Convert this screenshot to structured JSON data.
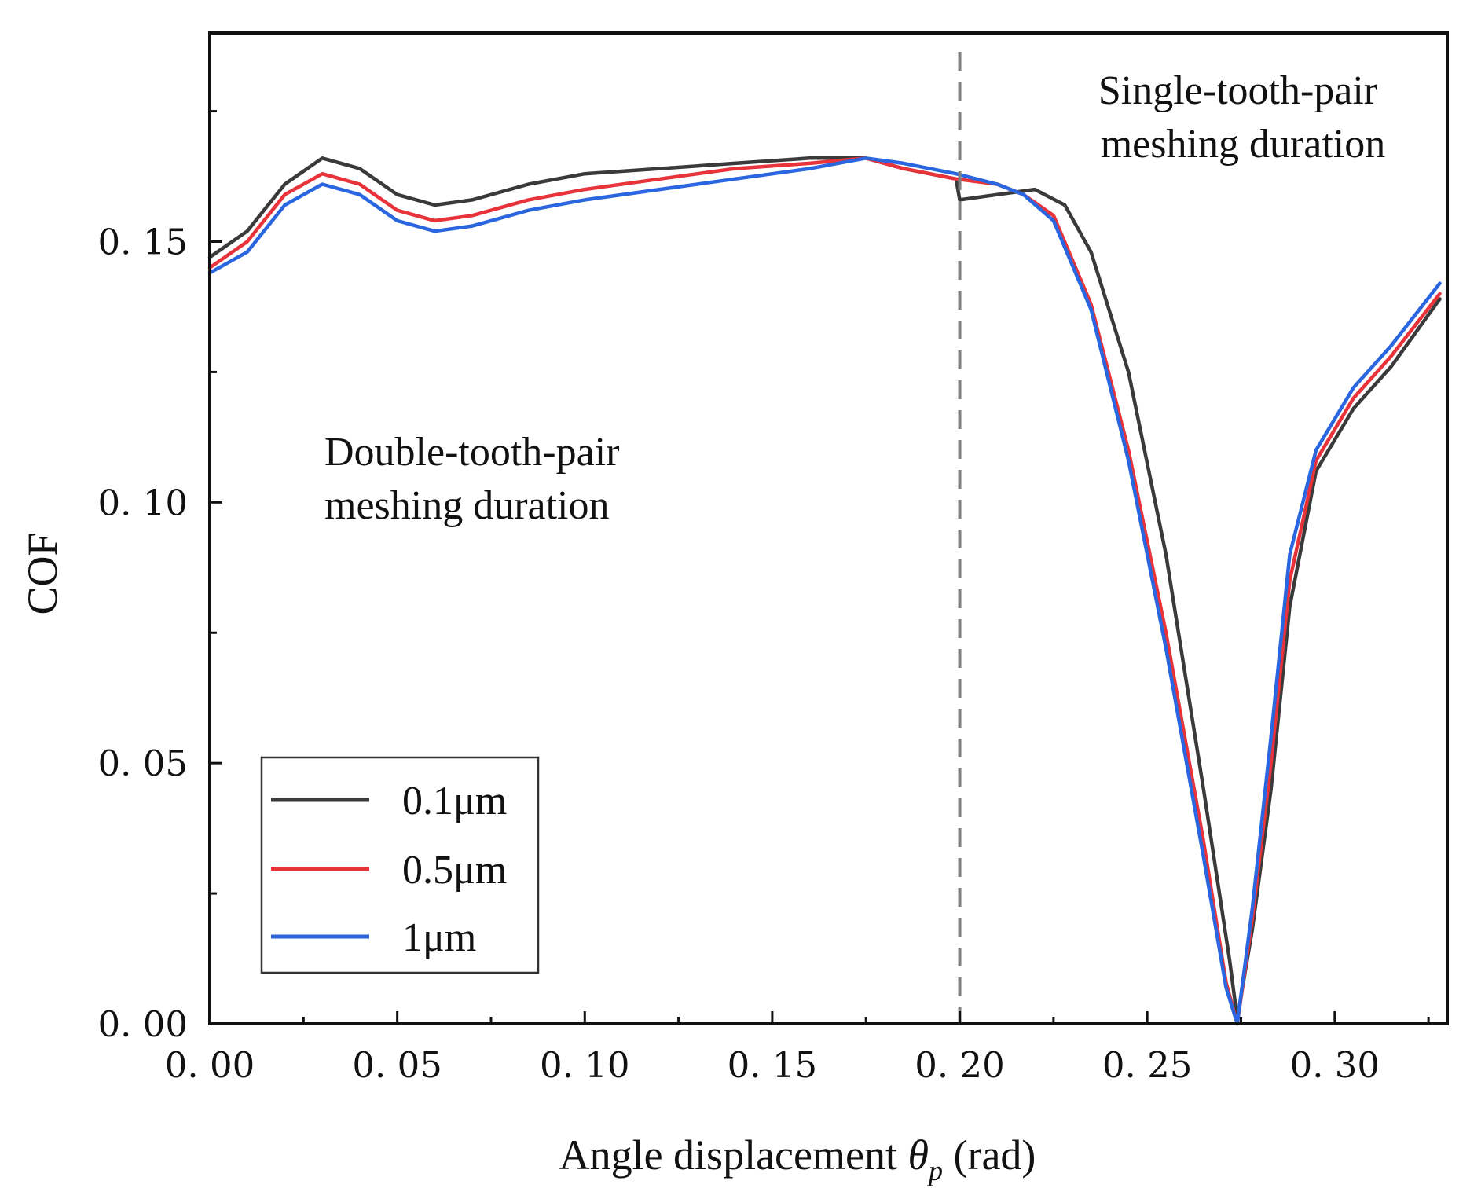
{
  "chart_data": {
    "type": "line",
    "xlabel_main": "Angle displacement ",
    "xlabel_symbol": "θ",
    "xlabel_sub": "p",
    "xlabel_unit": " (rad)",
    "ylabel": "COF",
    "xlim": [
      0.0,
      0.33
    ],
    "ylim": [
      0.0,
      0.19
    ],
    "x_ticks": [
      {
        "value": 0.0,
        "label": "0. 00"
      },
      {
        "value": 0.05,
        "label": "0. 05"
      },
      {
        "value": 0.1,
        "label": "0. 10"
      },
      {
        "value": 0.15,
        "label": "0. 15"
      },
      {
        "value": 0.2,
        "label": "0. 20"
      },
      {
        "value": 0.25,
        "label": "0. 25"
      },
      {
        "value": 0.3,
        "label": "0. 30"
      }
    ],
    "x_minor_ticks": [
      0.025,
      0.075,
      0.125,
      0.175,
      0.225,
      0.275,
      0.325
    ],
    "y_ticks": [
      {
        "value": 0.0,
        "label": "0. 00"
      },
      {
        "value": 0.05,
        "label": "0. 05"
      },
      {
        "value": 0.1,
        "label": "0. 10"
      },
      {
        "value": 0.15,
        "label": "0. 15"
      }
    ],
    "y_minor_ticks": [
      0.025,
      0.075,
      0.125,
      0.175
    ],
    "divider_x": 0.2,
    "annotations": [
      {
        "lines": [
          "Double-tooth-pair",
          "meshing duration"
        ]
      },
      {
        "lines": [
          "Single-tooth-pair",
          "meshing duration"
        ]
      }
    ],
    "legend_position": "bottom-left",
    "grid": false,
    "series": [
      {
        "name": "0.1μm",
        "color": "#3a3a3a",
        "points": [
          [
            0.0,
            0.147
          ],
          [
            0.01,
            0.152
          ],
          [
            0.02,
            0.161
          ],
          [
            0.03,
            0.166
          ],
          [
            0.04,
            0.164
          ],
          [
            0.05,
            0.159
          ],
          [
            0.06,
            0.157
          ],
          [
            0.07,
            0.158
          ],
          [
            0.085,
            0.161
          ],
          [
            0.1,
            0.163
          ],
          [
            0.12,
            0.164
          ],
          [
            0.14,
            0.165
          ],
          [
            0.16,
            0.166
          ],
          [
            0.175,
            0.166
          ],
          [
            0.185,
            0.164
          ],
          [
            0.199,
            0.162
          ],
          [
            0.2,
            0.158
          ],
          [
            0.21,
            0.159
          ],
          [
            0.22,
            0.16
          ],
          [
            0.228,
            0.157
          ],
          [
            0.235,
            0.148
          ],
          [
            0.245,
            0.125
          ],
          [
            0.255,
            0.09
          ],
          [
            0.265,
            0.045
          ],
          [
            0.272,
            0.012
          ],
          [
            0.274,
            0.001
          ],
          [
            0.278,
            0.018
          ],
          [
            0.283,
            0.045
          ],
          [
            0.288,
            0.08
          ],
          [
            0.295,
            0.106
          ],
          [
            0.305,
            0.118
          ],
          [
            0.315,
            0.126
          ],
          [
            0.328,
            0.139
          ]
        ]
      },
      {
        "name": "0.5μm",
        "color": "#e8333a",
        "points": [
          [
            0.0,
            0.145
          ],
          [
            0.01,
            0.15
          ],
          [
            0.02,
            0.159
          ],
          [
            0.03,
            0.163
          ],
          [
            0.04,
            0.161
          ],
          [
            0.05,
            0.156
          ],
          [
            0.06,
            0.154
          ],
          [
            0.07,
            0.155
          ],
          [
            0.085,
            0.158
          ],
          [
            0.1,
            0.16
          ],
          [
            0.12,
            0.162
          ],
          [
            0.14,
            0.164
          ],
          [
            0.16,
            0.165
          ],
          [
            0.175,
            0.166
          ],
          [
            0.185,
            0.164
          ],
          [
            0.199,
            0.162
          ],
          [
            0.21,
            0.161
          ],
          [
            0.217,
            0.159
          ],
          [
            0.225,
            0.155
          ],
          [
            0.235,
            0.138
          ],
          [
            0.245,
            0.11
          ],
          [
            0.255,
            0.075
          ],
          [
            0.265,
            0.035
          ],
          [
            0.271,
            0.008
          ],
          [
            0.274,
            0.0
          ],
          [
            0.278,
            0.02
          ],
          [
            0.283,
            0.05
          ],
          [
            0.288,
            0.085
          ],
          [
            0.295,
            0.108
          ],
          [
            0.305,
            0.12
          ],
          [
            0.315,
            0.128
          ],
          [
            0.328,
            0.14
          ]
        ]
      },
      {
        "name": "1μm",
        "color": "#2a66e0",
        "points": [
          [
            0.0,
            0.144
          ],
          [
            0.01,
            0.148
          ],
          [
            0.02,
            0.157
          ],
          [
            0.03,
            0.161
          ],
          [
            0.04,
            0.159
          ],
          [
            0.05,
            0.154
          ],
          [
            0.06,
            0.152
          ],
          [
            0.07,
            0.153
          ],
          [
            0.085,
            0.156
          ],
          [
            0.1,
            0.158
          ],
          [
            0.12,
            0.16
          ],
          [
            0.14,
            0.162
          ],
          [
            0.16,
            0.164
          ],
          [
            0.175,
            0.166
          ],
          [
            0.185,
            0.165
          ],
          [
            0.199,
            0.163
          ],
          [
            0.21,
            0.161
          ],
          [
            0.217,
            0.159
          ],
          [
            0.225,
            0.154
          ],
          [
            0.235,
            0.137
          ],
          [
            0.245,
            0.108
          ],
          [
            0.255,
            0.072
          ],
          [
            0.265,
            0.032
          ],
          [
            0.271,
            0.007
          ],
          [
            0.274,
            0.0
          ],
          [
            0.278,
            0.022
          ],
          [
            0.283,
            0.055
          ],
          [
            0.288,
            0.09
          ],
          [
            0.295,
            0.11
          ],
          [
            0.305,
            0.122
          ],
          [
            0.315,
            0.13
          ],
          [
            0.328,
            0.142
          ]
        ]
      }
    ]
  }
}
